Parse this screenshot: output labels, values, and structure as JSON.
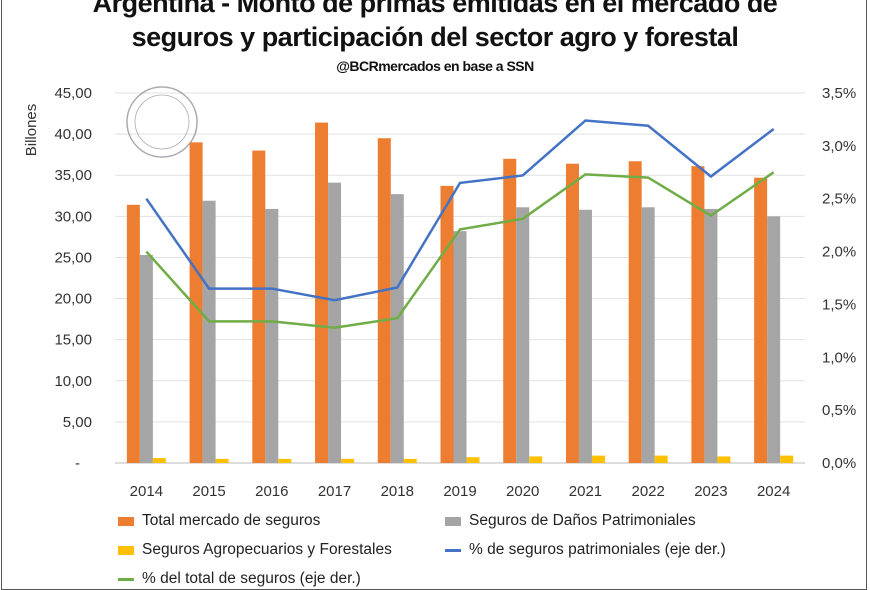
{
  "chart_data": {
    "type": "bar",
    "title_lines": [
      "Argentina - Monto de primas emitidas en el mercado de",
      "seguros y participación del sector agro y forestal"
    ],
    "subtitle": "@BCRmercados en base a SSN",
    "ylabel": "Billones",
    "ylim": [
      0,
      45
    ],
    "y_ticks": [
      "-",
      "5,00",
      "10,00",
      "15,00",
      "20,00",
      "25,00",
      "30,00",
      "35,00",
      "40,00",
      "45,00"
    ],
    "y2lim": [
      0,
      3.5
    ],
    "y2_ticks": [
      "0,0%",
      "0,5%",
      "1,0%",
      "1,5%",
      "2,0%",
      "2,5%",
      "3,0%",
      "3,5%"
    ],
    "grid": true,
    "legend_position": "bottom",
    "categories": [
      "2014",
      "2015",
      "2016",
      "2017",
      "2018",
      "2019",
      "2020",
      "2021",
      "2022",
      "2023",
      "2024"
    ],
    "series": [
      {
        "name": "Total mercado de seguros",
        "kind": "bar",
        "axis": "left",
        "color": "#ED7D31",
        "values": [
          31.4,
          39.0,
          38.0,
          41.4,
          39.5,
          33.7,
          37.0,
          36.4,
          36.7,
          36.1,
          34.7
        ]
      },
      {
        "name": "Seguros de Daños Patrimoniales",
        "kind": "bar",
        "axis": "left",
        "color": "#A5A5A5",
        "values": [
          25.3,
          31.9,
          30.9,
          34.1,
          32.7,
          28.2,
          31.1,
          30.8,
          31.1,
          30.9,
          30.0
        ]
      },
      {
        "name": "Seguros Agropecuarios y Forestales",
        "kind": "bar",
        "axis": "left",
        "color": "#FFC000",
        "values": [
          0.6,
          0.5,
          0.5,
          0.5,
          0.5,
          0.7,
          0.8,
          0.9,
          0.9,
          0.8,
          0.9
        ]
      },
      {
        "name": "% de seguros patrimoniales (eje der.)",
        "kind": "line",
        "axis": "right",
        "color": "#4472C4",
        "values": [
          2.5,
          1.65,
          1.65,
          1.54,
          1.66,
          2.65,
          2.72,
          3.24,
          3.19,
          2.71,
          3.16
        ]
      },
      {
        "name": "% del total de seguros (eje der.)",
        "kind": "line",
        "axis": "right",
        "color": "#70AD47",
        "values": [
          2.0,
          1.34,
          1.34,
          1.28,
          1.37,
          2.21,
          2.31,
          2.73,
          2.7,
          2.34,
          2.75
        ]
      }
    ]
  }
}
